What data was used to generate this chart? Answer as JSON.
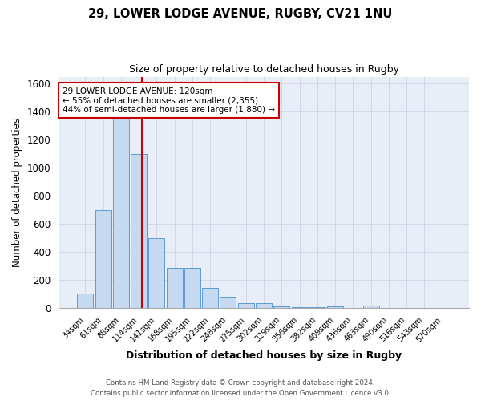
{
  "title_line1": "29, LOWER LODGE AVENUE, RUGBY, CV21 1NU",
  "title_line2": "Size of property relative to detached houses in Rugby",
  "xlabel": "Distribution of detached houses by size in Rugby",
  "ylabel": "Number of detached properties",
  "bar_labels": [
    "34sqm",
    "61sqm",
    "88sqm",
    "114sqm",
    "141sqm",
    "168sqm",
    "195sqm",
    "222sqm",
    "248sqm",
    "275sqm",
    "302sqm",
    "329sqm",
    "356sqm",
    "382sqm",
    "409sqm",
    "436sqm",
    "463sqm",
    "490sqm",
    "516sqm",
    "543sqm",
    "570sqm"
  ],
  "bar_values": [
    100,
    700,
    1350,
    1100,
    495,
    285,
    285,
    145,
    80,
    35,
    35,
    10,
    5,
    5,
    10,
    0,
    15,
    0,
    0,
    0,
    0
  ],
  "bar_color": "#c5d9f0",
  "bar_edge_color": "#5b9bd5",
  "grid_color": "#d0d8e8",
  "background_color": "#e8eef8",
  "vline_color": "#cc0000",
  "annotation_text": "29 LOWER LODGE AVENUE: 120sqm\n← 55% of detached houses are smaller (2,355)\n44% of semi-detached houses are larger (1,880) →",
  "annotation_box_color": "#ffffff",
  "annotation_box_edge": "#cc0000",
  "ylim": [
    0,
    1650
  ],
  "yticks": [
    0,
    200,
    400,
    600,
    800,
    1000,
    1200,
    1400,
    1600
  ],
  "footer_line1": "Contains HM Land Registry data © Crown copyright and database right 2024.",
  "footer_line2": "Contains public sector information licensed under the Open Government Licence v3.0."
}
